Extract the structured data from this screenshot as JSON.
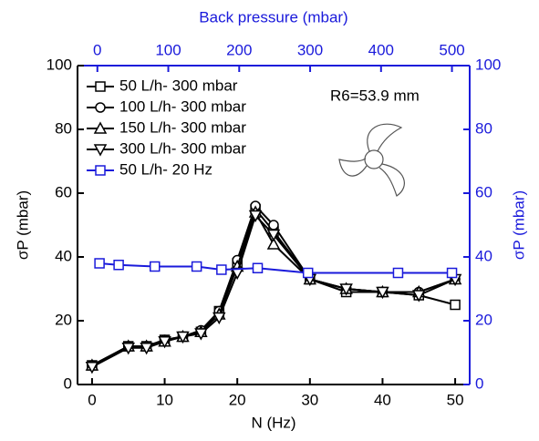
{
  "chart_data": {
    "type": "line",
    "xlabel": "N (Hz)",
    "x2label": "Back pressure (mbar)",
    "ylabel": "σP (mbar)",
    "y2label": "σP (mbar)",
    "annotation": "R6=53.9 mm",
    "xlim": [
      -2,
      52
    ],
    "xticks": [
      0,
      10,
      20,
      30,
      40,
      50
    ],
    "x2lim": [
      -28,
      525
    ],
    "x2ticks": [
      0,
      100,
      200,
      300,
      400,
      500
    ],
    "ylim": [
      0,
      100
    ],
    "yticks": [
      0,
      20,
      40,
      60,
      80,
      100
    ],
    "y2lim": [
      0,
      100
    ],
    "y2ticks": [
      0,
      20,
      40,
      60,
      80,
      100
    ],
    "axis2_color": "#1a1adb",
    "series": [
      {
        "name": "50 L/h- 300 mbar",
        "color": "#000000",
        "marker": "square",
        "x": [
          0,
          5,
          7.5,
          10,
          12.5,
          15,
          17.5,
          20,
          22.5,
          25,
          30,
          35,
          40,
          45,
          50
        ],
        "values": [
          6,
          12,
          12,
          14,
          15,
          16.5,
          23,
          38,
          55,
          48,
          33,
          29,
          29,
          28,
          25
        ]
      },
      {
        "name": "100 L/h- 300 mbar",
        "color": "#000000",
        "marker": "circle",
        "x": [
          0,
          5,
          7.5,
          10,
          12.5,
          15,
          17.5,
          20,
          22.5,
          25,
          30,
          35,
          40,
          45,
          50
        ],
        "values": [
          6,
          12,
          12,
          14,
          15,
          17,
          23,
          39,
          56,
          50,
          33,
          30,
          29,
          29,
          33
        ]
      },
      {
        "name": "150 L/h- 300 mbar",
        "color": "#000000",
        "marker": "triangle-up",
        "x": [
          0,
          5,
          7.5,
          10,
          12.5,
          15,
          17.5,
          20,
          22.5,
          25,
          30,
          35,
          40,
          45,
          50
        ],
        "values": [
          6,
          12,
          12,
          13.5,
          15,
          16.5,
          22,
          37,
          54,
          44,
          33,
          30,
          29,
          29,
          33
        ]
      },
      {
        "name": "300 L/h- 300 mbar",
        "color": "#000000",
        "marker": "triangle-down",
        "x": [
          0,
          5,
          7.5,
          10,
          12.5,
          15,
          17.5,
          20,
          22.5,
          25,
          30,
          35,
          40,
          45,
          50
        ],
        "values": [
          5.5,
          11.5,
          11.5,
          13.5,
          15,
          16,
          21,
          35,
          53,
          47,
          33,
          30,
          29,
          28,
          33
        ]
      },
      {
        "name": "50 L/h- 20 Hz",
        "color": "#1a1adb",
        "marker": "square",
        "axis": "y2",
        "xaxis": "x2",
        "x": [
          3,
          30,
          81,
          140,
          175,
          226,
          297,
          424,
          500
        ],
        "values": [
          38,
          37.5,
          37,
          37,
          36,
          36.5,
          35,
          35,
          35
        ]
      }
    ]
  }
}
